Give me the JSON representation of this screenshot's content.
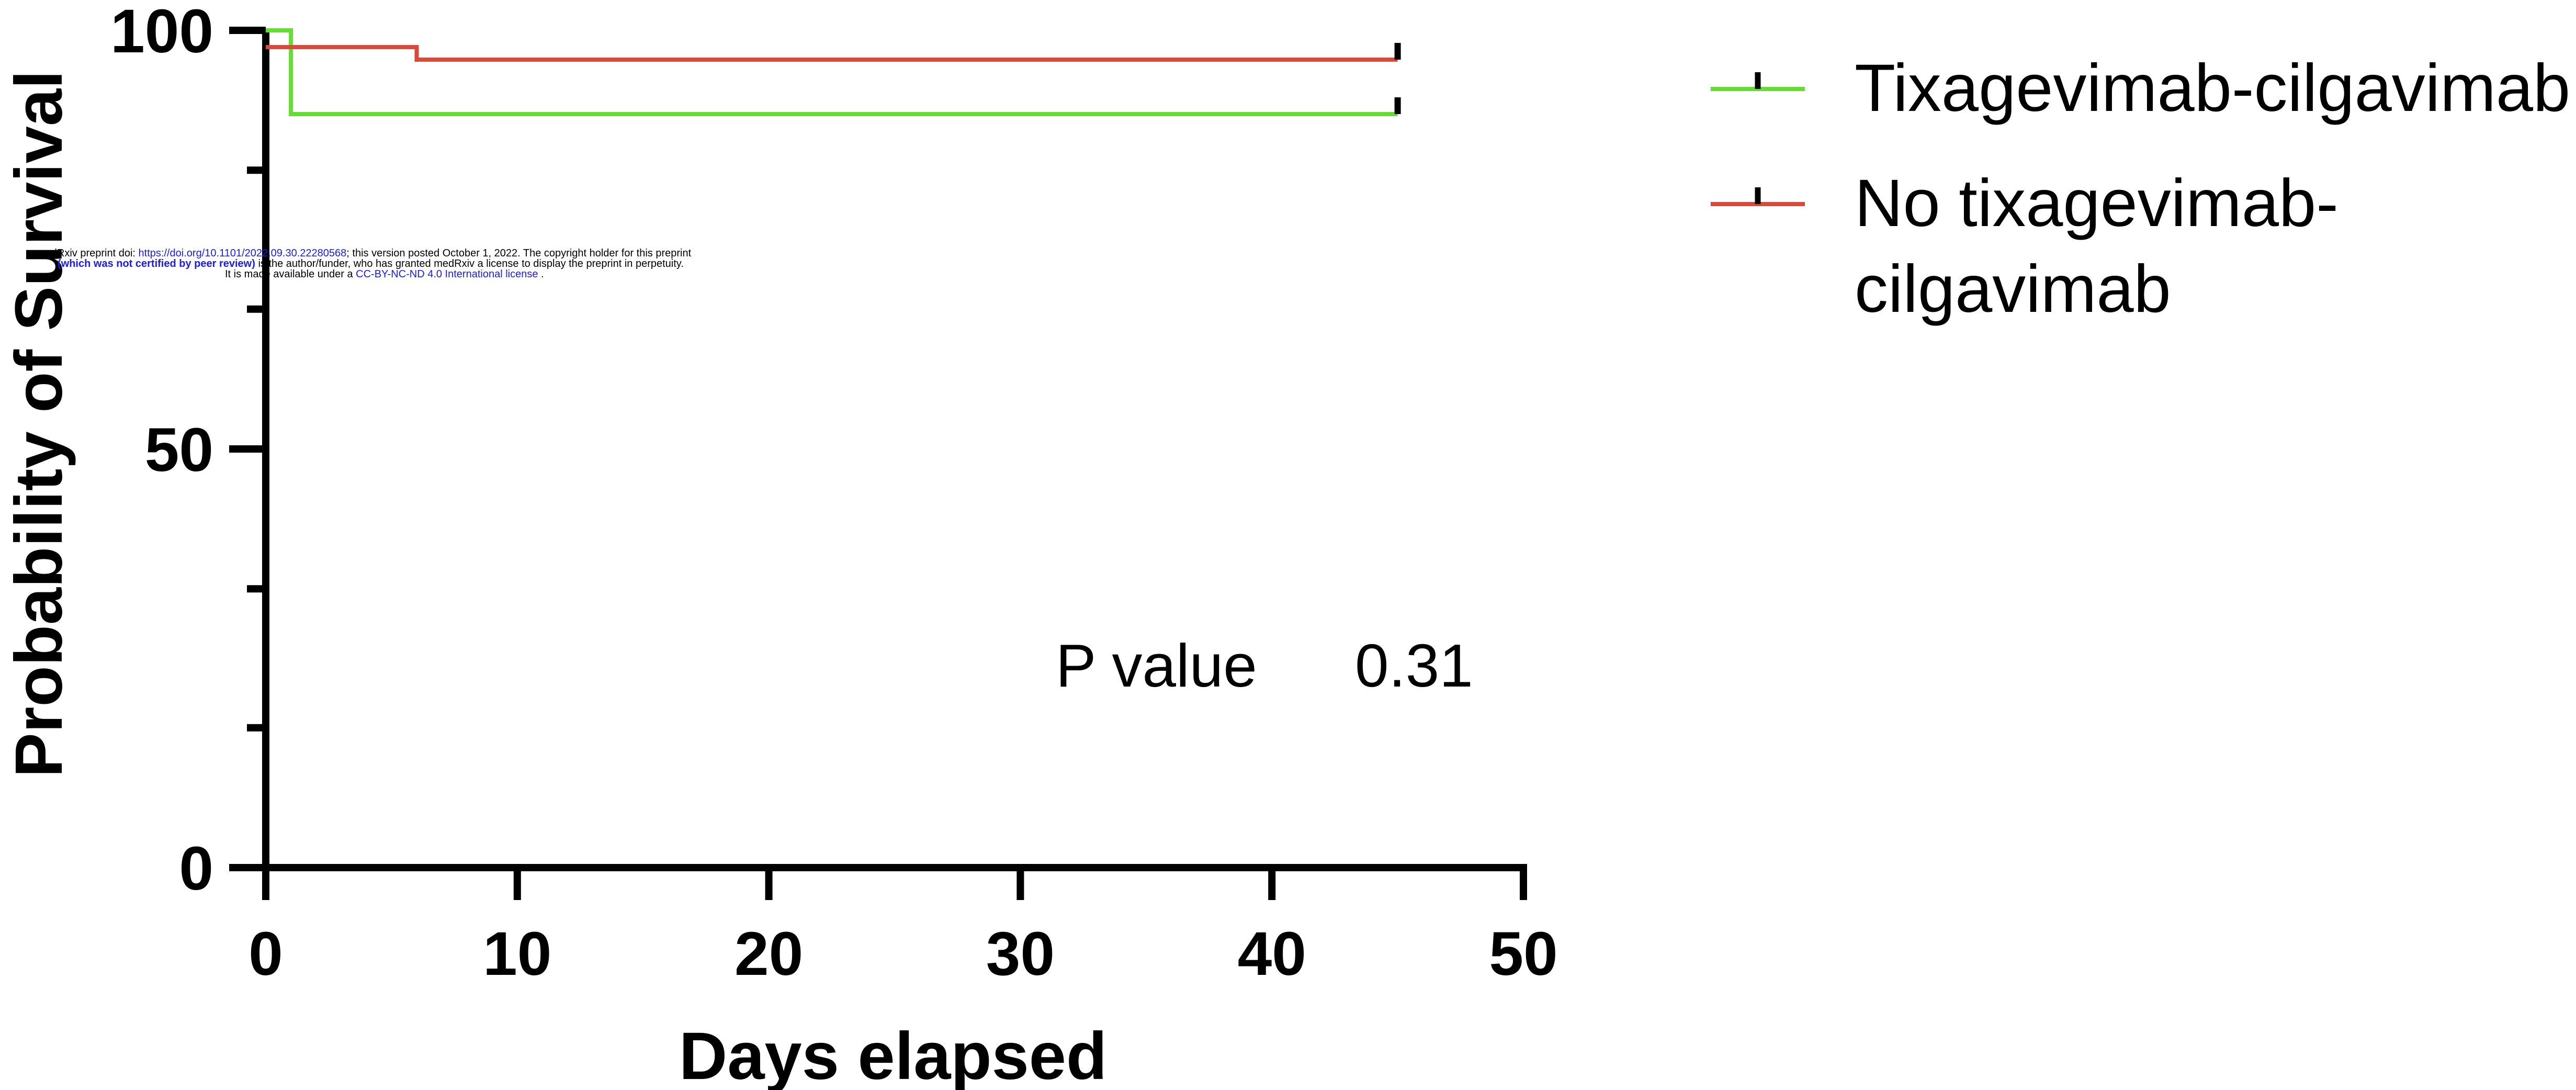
{
  "chart_data": {
    "type": "line",
    "subtype": "kaplan-meier step",
    "xlabel": "Days elapsed",
    "ylabel": "Probability of Survival",
    "xlim": [
      0,
      50
    ],
    "ylim": [
      0,
      100
    ],
    "x_ticks": [
      "0",
      "10",
      "20",
      "30",
      "40",
      "50"
    ],
    "y_ticks": [
      "0",
      "50",
      "100"
    ],
    "y_minor_ticks": [
      16.7,
      33.3,
      66.7,
      83.3
    ],
    "grid": false,
    "legend_position": "right",
    "annotation": {
      "label": "P value",
      "value": "0.31"
    },
    "series": [
      {
        "name": "Tixagevimab-cilgavimab",
        "color": "#66dd33",
        "x": [
          0,
          1,
          1,
          45
        ],
        "y": [
          100,
          100,
          90,
          90
        ],
        "censor_x": 45,
        "censor_y": 90
      },
      {
        "name": "No tixagevimab-cilgavimab",
        "name_lines": [
          "No tixagevimab-",
          "cilgavimab"
        ],
        "color": "#d94a3a",
        "x": [
          0,
          6,
          6,
          45
        ],
        "y": [
          98,
          98,
          96.5,
          96.5
        ],
        "censor_x": 45,
        "censor_y": 96.5
      }
    ]
  },
  "watermark": {
    "line1_prefix": "medRxiv preprint doi: ",
    "line1_link": "https://doi.org/10.1101/2022.09.30.22280568",
    "line1_suffix": "; this version posted October 1, 2022. The copyright holder for this preprint",
    "line2_bold": "(which was not certified by peer review)",
    "line2_suffix": " is the author/funder, who has granted medRxiv a license to display the preprint in perpetuity.",
    "line3_prefix": "It is made available under a ",
    "line3_link": "CC-BY-NC-ND 4.0 International license",
    "line3_suffix": " ."
  }
}
